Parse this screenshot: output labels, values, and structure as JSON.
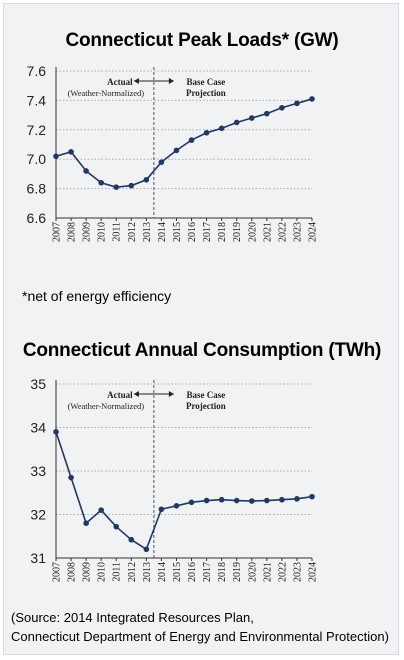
{
  "footnote": "*net of energy efficiency",
  "source": {
    "line1": "(Source: 2014 Integrated Resources Plan,",
    "line2": "Connecticut Department of Energy and Environmental Protection)"
  },
  "colors": {
    "line": "#1f3864",
    "grid": "#aaaaaa",
    "divider": "#555555"
  },
  "chart_data": [
    {
      "type": "line",
      "title": "Connecticut Peak Loads* (GW)",
      "x": [
        "2007",
        "2008",
        "2009",
        "2010",
        "2011",
        "2012",
        "2013",
        "2014",
        "2015",
        "2016",
        "2017",
        "2018",
        "2019",
        "2020",
        "2021",
        "2022",
        "2023",
        "2024"
      ],
      "series": [
        {
          "values": [
            7.02,
            7.05,
            6.92,
            6.84,
            6.81,
            6.82,
            6.86,
            6.98,
            7.06,
            7.13,
            7.18,
            7.21,
            7.25,
            7.28,
            7.31,
            7.35,
            7.38,
            7.41
          ]
        }
      ],
      "ylim": [
        6.6,
        7.6
      ],
      "yticks": [
        "6.6",
        "6.8",
        "7.0",
        "7.2",
        "7.4",
        "7.6"
      ],
      "grid": true,
      "divider_after": "2013",
      "annotations": {
        "left": "Actual",
        "left_sub": "(Weather-Normalized)",
        "right": "Base Case",
        "right_sub": "Projection"
      }
    },
    {
      "type": "line",
      "title": "Connecticut Annual Consumption (TWh)",
      "x": [
        "2007",
        "2008",
        "2009",
        "2010",
        "2011",
        "2012",
        "2013",
        "2014",
        "2015",
        "2016",
        "2017",
        "2018",
        "2019",
        "2020",
        "2021",
        "2022",
        "2023",
        "2024"
      ],
      "series": [
        {
          "values": [
            33.9,
            32.85,
            31.8,
            32.1,
            31.72,
            31.42,
            31.2,
            32.12,
            32.2,
            32.28,
            32.32,
            32.34,
            32.32,
            32.31,
            32.32,
            32.34,
            32.36,
            32.41
          ]
        }
      ],
      "ylim": [
        31,
        35
      ],
      "yticks": [
        "31",
        "32",
        "33",
        "34",
        "35"
      ],
      "grid": true,
      "divider_after": "2013",
      "annotations": {
        "left": "Actual",
        "left_sub": "(Weather-Normalized)",
        "right": "Base Case",
        "right_sub": "Projection"
      }
    }
  ]
}
